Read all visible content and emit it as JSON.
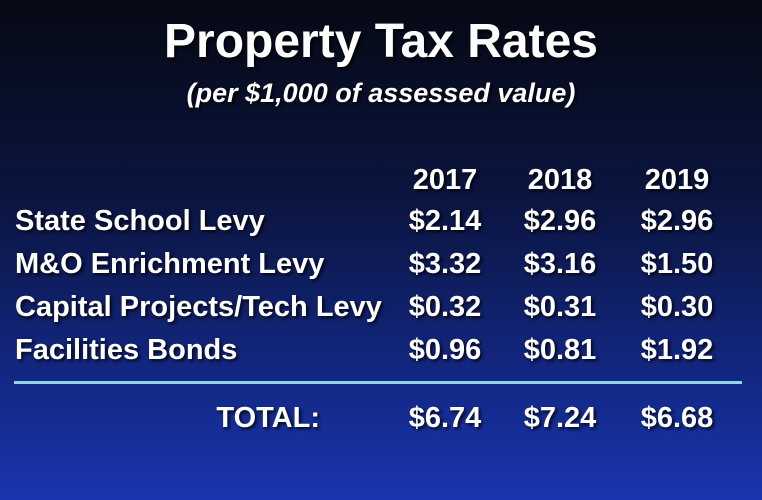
{
  "header": {
    "title": "Property Tax Rates",
    "subtitle": "(per $1,000 of assessed value)"
  },
  "table": {
    "columns": [
      "2017",
      "2018",
      "2019"
    ],
    "rows": [
      [
        "State School Levy",
        "$2.14",
        "$2.96",
        "$2.96"
      ],
      [
        "M&O Enrichment Levy",
        "$3.32",
        "$3.16",
        "$1.50"
      ],
      [
        "Capital Projects/Tech Levy",
        "$0.32",
        "$0.31",
        "$0.30"
      ],
      [
        "Facilities Bonds",
        "$0.96",
        "$0.81",
        "$1.92"
      ]
    ],
    "total": [
      "TOTAL:",
      "$6.74",
      "$7.24",
      "$6.68"
    ]
  }
}
